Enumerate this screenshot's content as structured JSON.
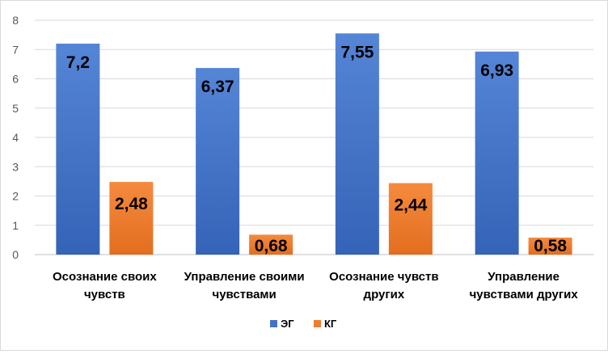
{
  "chart_data": {
    "type": "bar",
    "title": "",
    "xlabel": "",
    "ylabel": "",
    "ylim": [
      0,
      8
    ],
    "yticks": [
      0,
      1,
      2,
      3,
      4,
      5,
      6,
      7,
      8
    ],
    "grid": true,
    "legend_position": "bottom",
    "categories": [
      [
        "Осознание своих",
        "чувств"
      ],
      [
        "Управление своими",
        "чувствами"
      ],
      [
        "Осознание чувств",
        "других"
      ],
      [
        "Управление",
        "чувствами других"
      ]
    ],
    "series": [
      {
        "name": "ЭГ",
        "color": "#4472C4",
        "values": [
          7.2,
          6.37,
          7.55,
          6.93
        ],
        "labels": [
          "7,2",
          "6,37",
          "7,55",
          "6,93"
        ]
      },
      {
        "name": "КГ",
        "color": "#ED7D31",
        "values": [
          2.48,
          0.68,
          2.44,
          0.58
        ],
        "labels": [
          "2,48",
          "0,68",
          "2,44",
          "0,58"
        ]
      }
    ]
  }
}
